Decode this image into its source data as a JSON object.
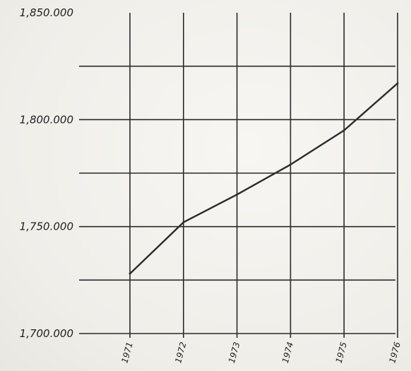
{
  "chart_data": {
    "type": "line",
    "title": "",
    "xlabel": "",
    "ylabel": "",
    "x": [
      "1971",
      "1972",
      "1973",
      "1974",
      "1975",
      "1976"
    ],
    "series": [
      {
        "values": [
          1728000,
          1752000,
          1765000,
          1779000,
          1795000,
          1817000
        ]
      }
    ],
    "ylim": [
      1700000,
      1850000
    ],
    "y_ticks": [
      {
        "value": 1700000,
        "label": "1,700.000"
      },
      {
        "value": 1750000,
        "label": "1,750.000"
      },
      {
        "value": 1800000,
        "label": "1,800.000"
      },
      {
        "value": 1850000,
        "label": "1,850.000"
      }
    ],
    "grid_y_values": [
      1725000,
      1775000,
      1825000
    ],
    "grid": true,
    "legend": "none",
    "line_color": "#2b2b2b",
    "grid_color": "#2a2a2a"
  }
}
